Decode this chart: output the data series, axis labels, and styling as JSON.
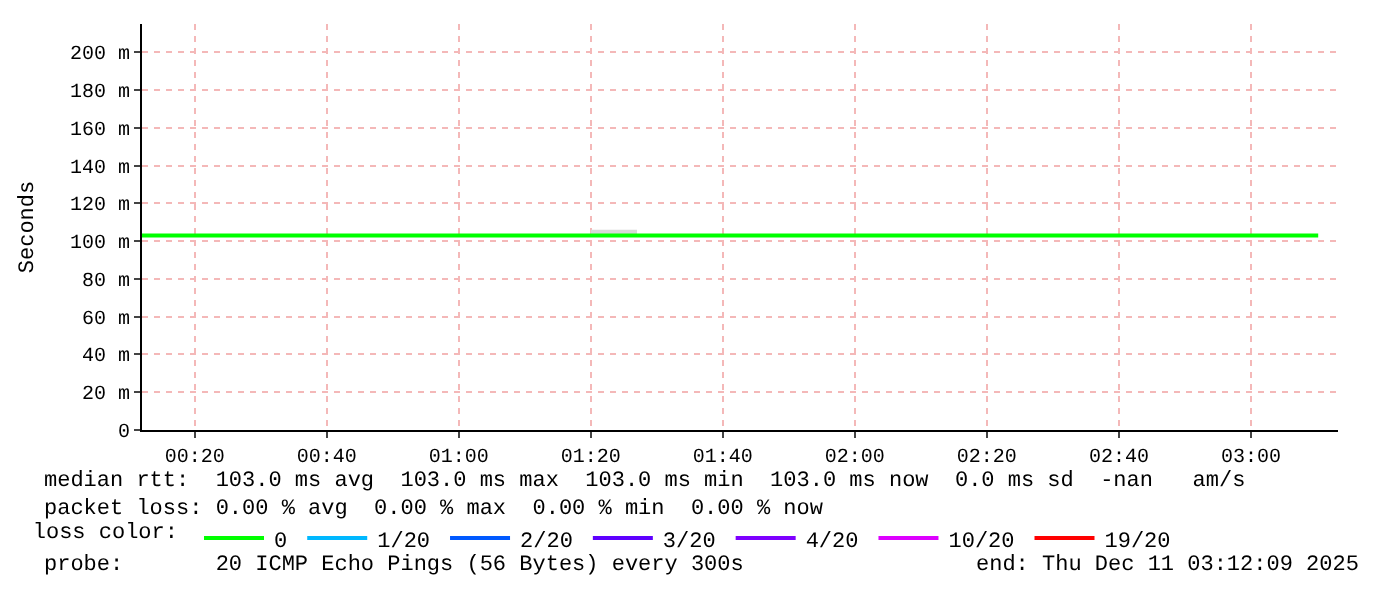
{
  "chart_data": {
    "type": "line",
    "ylabel": "Seconds",
    "xlim": [
      0.2,
      3.22
    ],
    "ylim": [
      0,
      215
    ],
    "xticks": [
      {
        "value": 0.3333,
        "label": "00:20"
      },
      {
        "value": 0.6667,
        "label": "00:40"
      },
      {
        "value": 1,
        "label": "01:00"
      },
      {
        "value": 1.3333,
        "label": "01:20"
      },
      {
        "value": 1.6667,
        "label": "01:40"
      },
      {
        "value": 2,
        "label": "02:00"
      },
      {
        "value": 2.3333,
        "label": "02:20"
      },
      {
        "value": 2.6667,
        "label": "02:40"
      },
      {
        "value": 3,
        "label": "03:00"
      }
    ],
    "yticks": [
      0,
      {
        "value": 20,
        "label": "20 m"
      },
      {
        "value": 40,
        "label": "40 m"
      },
      {
        "value": 60,
        "label": "60 m"
      },
      {
        "value": 80,
        "label": "80 m"
      },
      {
        "value": 100,
        "label": "100 m"
      },
      {
        "value": 120,
        "label": "120 m"
      },
      {
        "value": 140,
        "label": "140 m"
      },
      {
        "value": 160,
        "label": "160 m"
      },
      {
        "value": 180,
        "label": "180 m"
      },
      {
        "value": 200,
        "label": "200 m"
      }
    ],
    "grid": true,
    "legend": "bottom",
    "legend_title": "loss color:",
    "series": [
      {
        "name": "0",
        "color": "#00ff00",
        "x": [
          0.2,
          1.333,
          1.333,
          1.45,
          1.45,
          3.17
        ],
        "values": [
          103,
          103,
          103,
          103,
          103,
          103
        ],
        "lower": [
          103,
          103,
          103,
          103,
          103,
          103
        ],
        "upper": [
          103,
          103,
          106,
          106,
          103,
          103
        ]
      },
      {
        "name": "1/20",
        "color": "#00b8ff"
      },
      {
        "name": "2/20",
        "color": "#0059ff"
      },
      {
        "name": "3/20",
        "color": "#5e00ff"
      },
      {
        "name": "4/20",
        "color": "#7e00ff"
      },
      {
        "name": "10/20",
        "color": "#dd00ff"
      },
      {
        "name": "19/20",
        "color": "#ff0000"
      }
    ],
    "annotations": [
      "median rtt:  103.0 ms avg  103.0 ms max  103.0 ms min  103.0 ms now  0.0 ms sd  -nan   am/s",
      "packet loss: 0.00 % avg  0.00 % max  0.00 % min  0.00 % now",
      "probe:       20 ICMP Echo Pings (56 Bytes) every 300s",
      "end: Thu Dec 11 03:12:09 2025"
    ]
  }
}
